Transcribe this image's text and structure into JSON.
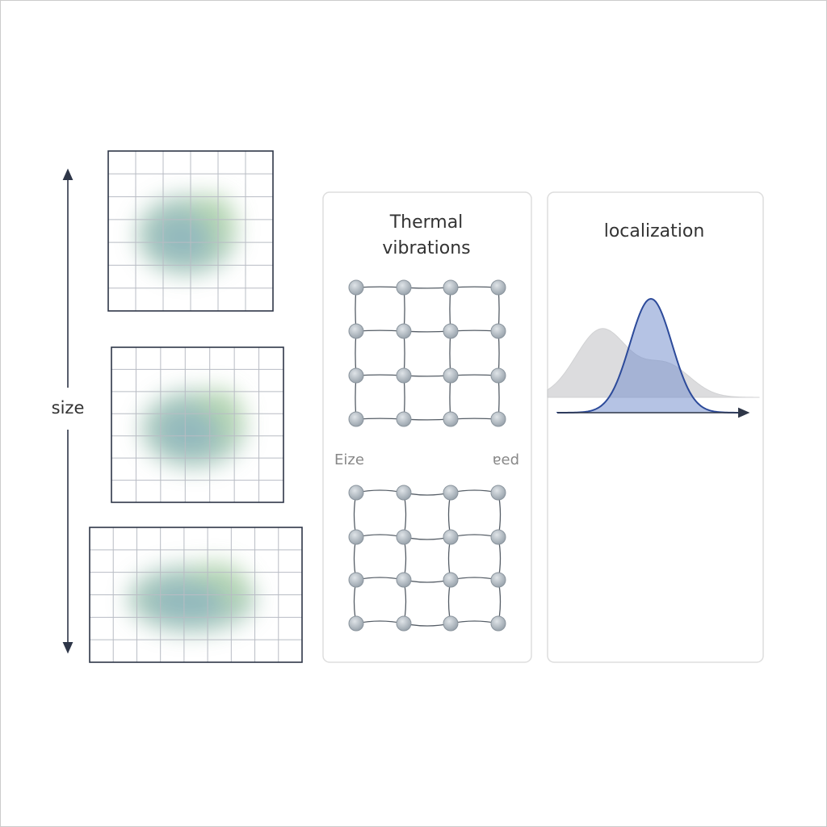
{
  "axis_label": "size",
  "panels": [
    {
      "title_lines": [
        "Thermal",
        "vibrations"
      ],
      "lattice_labels": [
        "Eize",
        "ɐed"
      ]
    },
    {
      "title": "localization"
    }
  ]
}
